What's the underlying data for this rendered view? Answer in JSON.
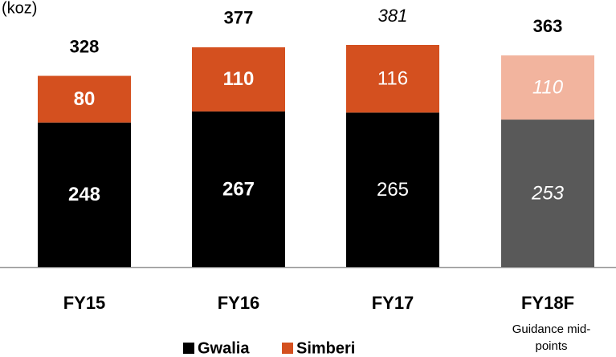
{
  "chart_data": {
    "type": "stacked_bar",
    "unit_label": "(koz)",
    "categories": [
      "FY15",
      "FY16",
      "FY17",
      "FY18F"
    ],
    "series": [
      {
        "name": "Gwalia",
        "color": "#000000",
        "colors": [
          "#000000",
          "#000000",
          "#000000",
          "#595959"
        ],
        "values": [
          248,
          267,
          265,
          253
        ],
        "label_fonts": [
          "bold",
          "bold",
          "normal",
          "italic"
        ]
      },
      {
        "name": "Simberi",
        "color": "#d4501f",
        "colors": [
          "#d4501f",
          "#d4501f",
          "#d4501f",
          "#f2b49e"
        ],
        "values": [
          80,
          110,
          116,
          110
        ],
        "label_fonts": [
          "bold",
          "bold",
          "normal",
          "italic"
        ]
      }
    ],
    "totals": [
      328,
      377,
      381,
      363
    ],
    "total_fonts": [
      "bold",
      "bold",
      "italic",
      "bold"
    ],
    "annotation": "Guidance mid-points",
    "legend": "bottom"
  }
}
